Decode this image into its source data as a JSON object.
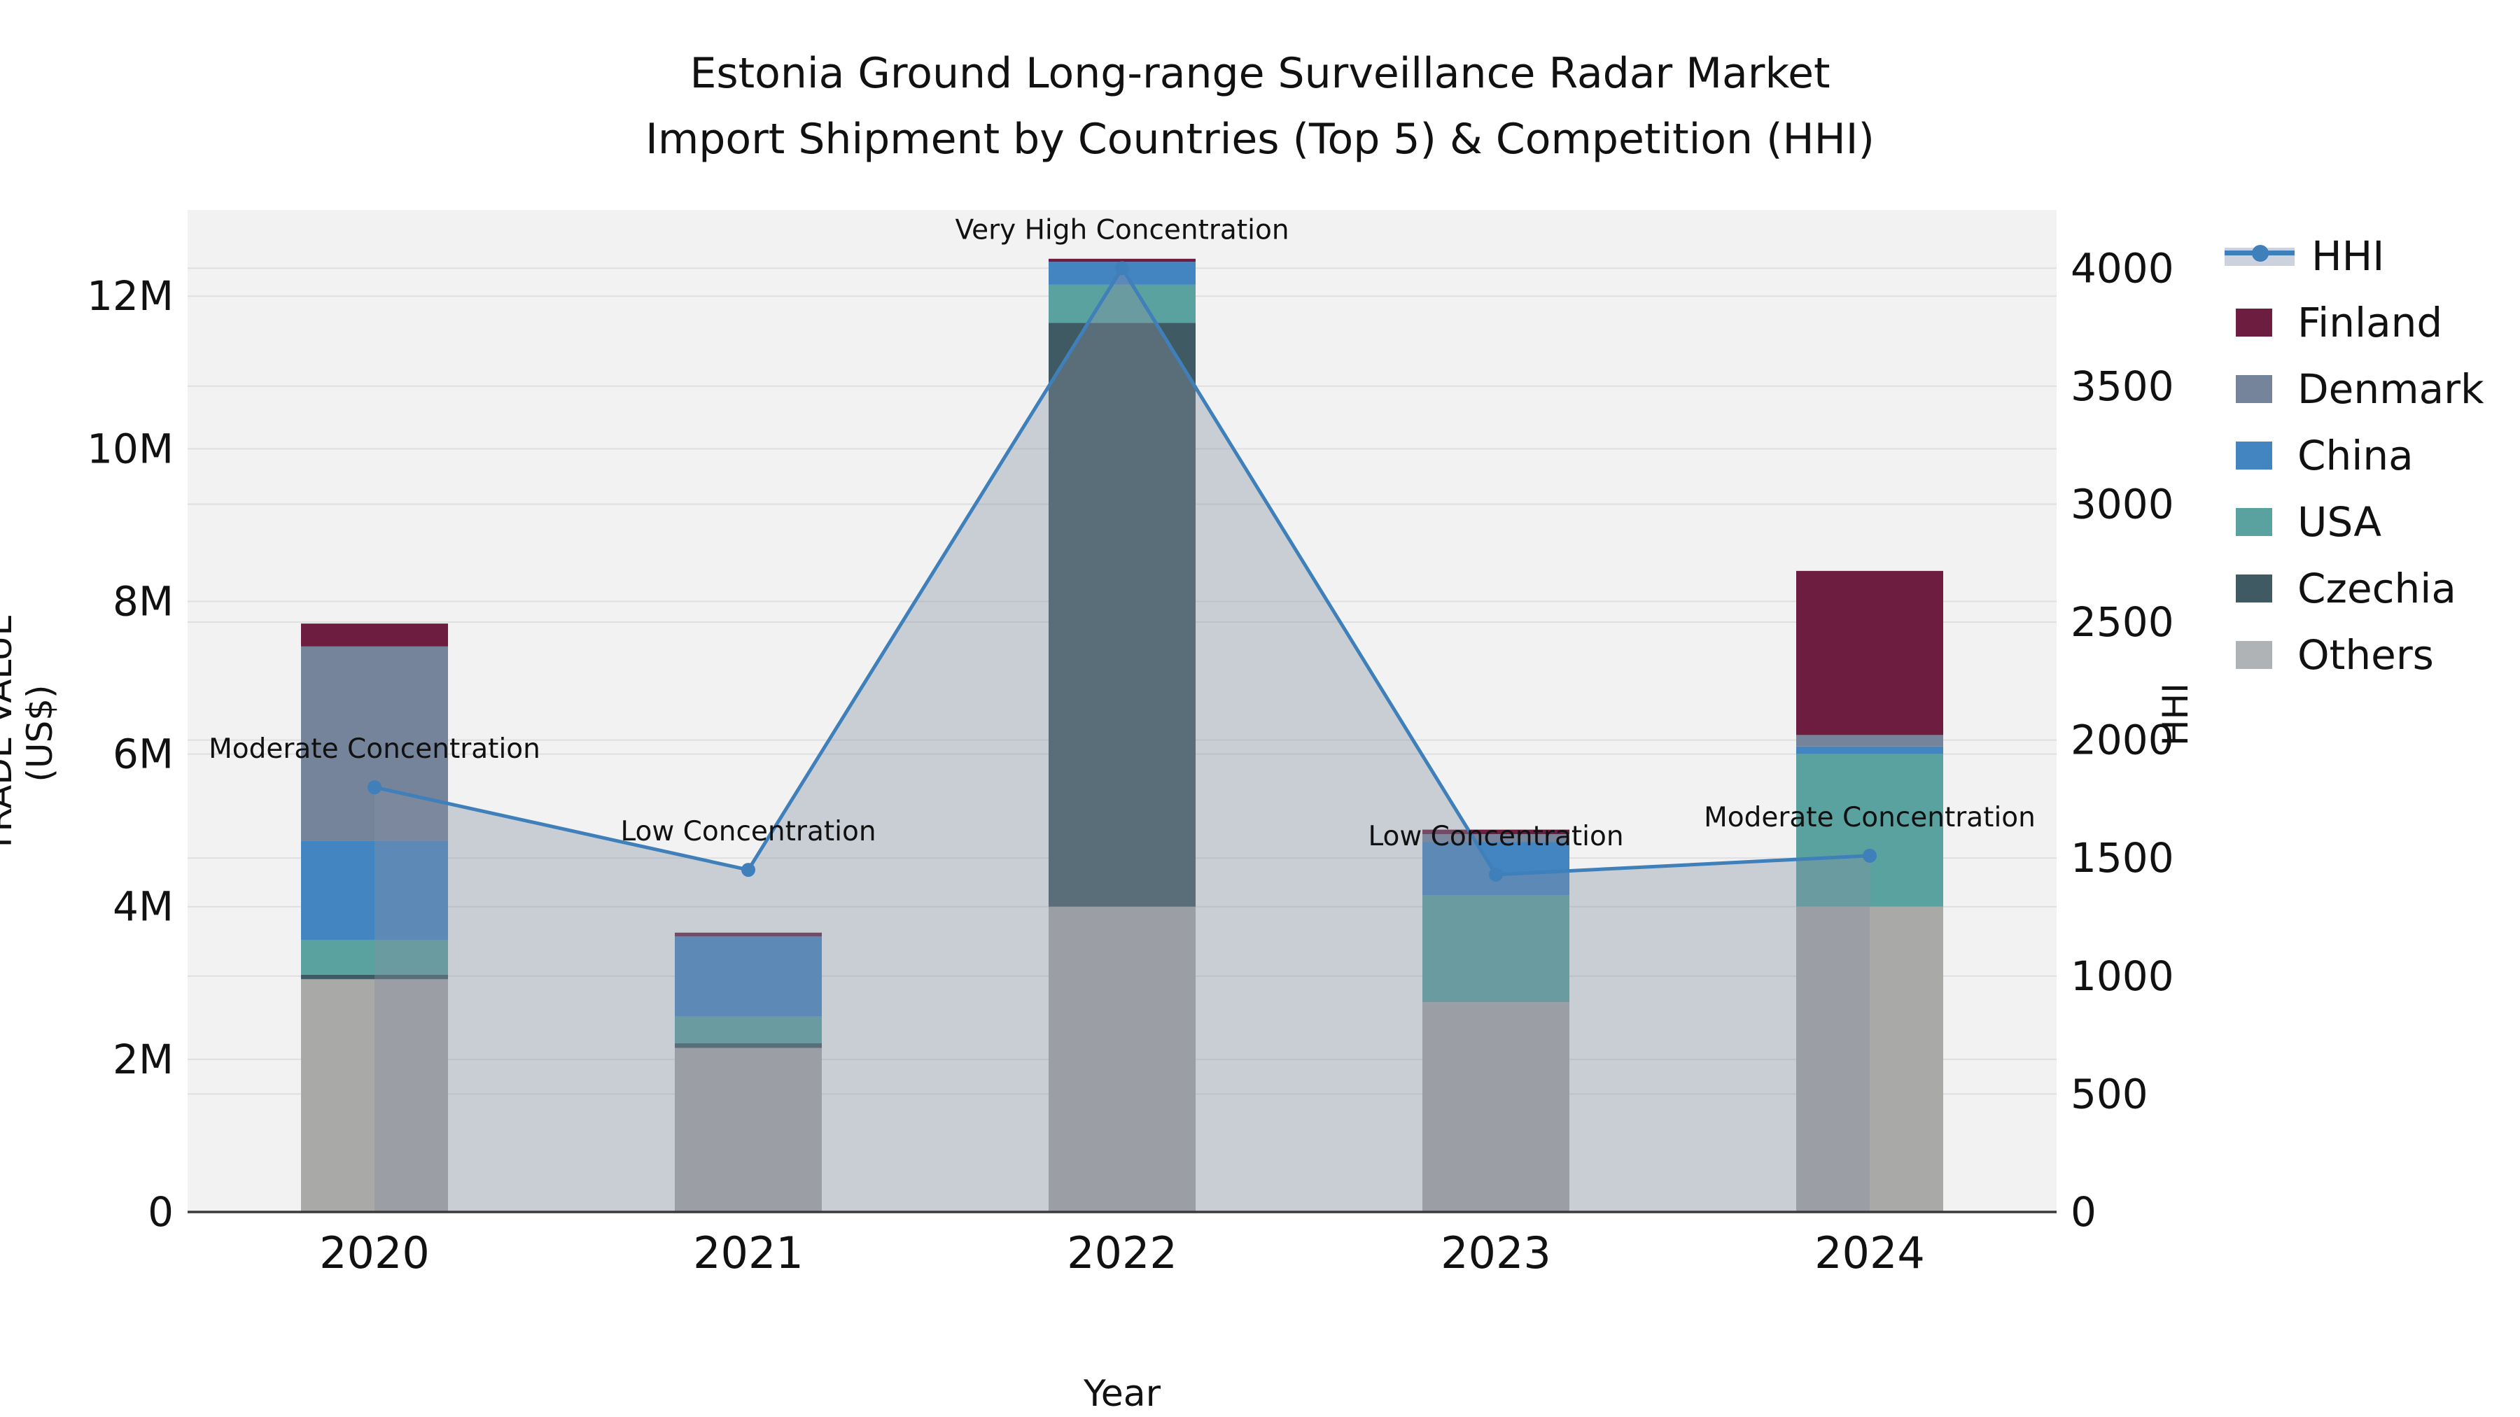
{
  "title": {
    "line1": "Estonia Ground Long-range Surveillance Radar Market",
    "line2": "Import Shipment by Countries (Top 5) & Competition (HHI)"
  },
  "axes": {
    "x_label": "Year",
    "y_left_label": "TRADE VALUE (US$)",
    "y_right_label": "HHI"
  },
  "legend": {
    "items": [
      {
        "label": "HHI",
        "type": "line",
        "color": "#3f7fba"
      },
      {
        "label": "Finland",
        "type": "patch",
        "color": "#6d1d40"
      },
      {
        "label": "Denmark",
        "type": "patch",
        "color": "#75849b"
      },
      {
        "label": "China",
        "type": "patch",
        "color": "#4385c1"
      },
      {
        "label": "USA",
        "type": "patch",
        "color": "#5aa2a0"
      },
      {
        "label": "Czechia",
        "type": "patch",
        "color": "#3f5a62"
      },
      {
        "label": "Others",
        "type": "patch",
        "color": "#b0b3b6"
      }
    ]
  },
  "chart_data": {
    "type": "bar",
    "subtype": "stacked-bars-with-line-dual-axis",
    "title": "Estonia Ground Long-range Surveillance Radar Market — Import Shipment by Countries (Top 5) & Competition (HHI)",
    "xlabel": "Year",
    "ylabel_left": "TRADE VALUE (US$)",
    "ylabel_right": "HHI",
    "categories": [
      "2020",
      "2021",
      "2022",
      "2023",
      "2024"
    ],
    "value_unit": "million US$",
    "series": [
      {
        "name": "Others",
        "color": "#a9a9a7",
        "values": [
          3.05,
          2.15,
          4.0,
          2.75,
          4.0
        ]
      },
      {
        "name": "Czechia",
        "color": "#3f5a62",
        "values": [
          0.06,
          0.06,
          7.65,
          0.0,
          0.0
        ]
      },
      {
        "name": "USA",
        "color": "#5aa2a0",
        "values": [
          0.45,
          0.35,
          0.5,
          1.4,
          2.0
        ]
      },
      {
        "name": "China",
        "color": "#4385c1",
        "values": [
          1.3,
          1.05,
          0.3,
          0.7,
          0.1
        ]
      },
      {
        "name": "Denmark",
        "color": "#75849b",
        "values": [
          2.55,
          0.0,
          0.0,
          0.1,
          0.15
        ]
      },
      {
        "name": "Finland",
        "color": "#6d1d40",
        "values": [
          0.3,
          0.05,
          0.04,
          0.06,
          2.15
        ]
      }
    ],
    "bar_totals": [
      7.71,
      3.66,
      12.49,
      5.01,
      8.4
    ],
    "line_series": {
      "name": "HHI",
      "color": "#3f7fba",
      "area_fill": "rgba(134,144,163,0.38)",
      "values": [
        1800,
        1450,
        4000,
        1430,
        1510
      ]
    },
    "annotations": [
      {
        "x": "2020",
        "text": "Moderate Concentration"
      },
      {
        "x": "2021",
        "text": "Low Concentration"
      },
      {
        "x": "2022",
        "text": "Very High Concentration"
      },
      {
        "x": "2023",
        "text": "Low Concentration"
      },
      {
        "x": "2024",
        "text": "Moderate Concentration"
      }
    ],
    "left_axis": {
      "tick_labels": [
        "0",
        "2M",
        "4M",
        "6M",
        "8M",
        "10M",
        "12M"
      ],
      "tick_values": [
        0,
        2,
        4,
        6,
        8,
        10,
        12
      ],
      "max": 13.13
    },
    "right_axis": {
      "tick_labels": [
        "0",
        "500",
        "1000",
        "1500",
        "2000",
        "2500",
        "3000",
        "3500",
        "4000"
      ],
      "tick_values": [
        0,
        500,
        1000,
        1500,
        2000,
        2500,
        3000,
        3500,
        4000
      ],
      "max": 4247
    },
    "grid": true,
    "legend_position": "right",
    "plot_background": "#f2f2f3",
    "grid_color": "#dfdfe1",
    "spine_color": "#3a3a3a"
  }
}
